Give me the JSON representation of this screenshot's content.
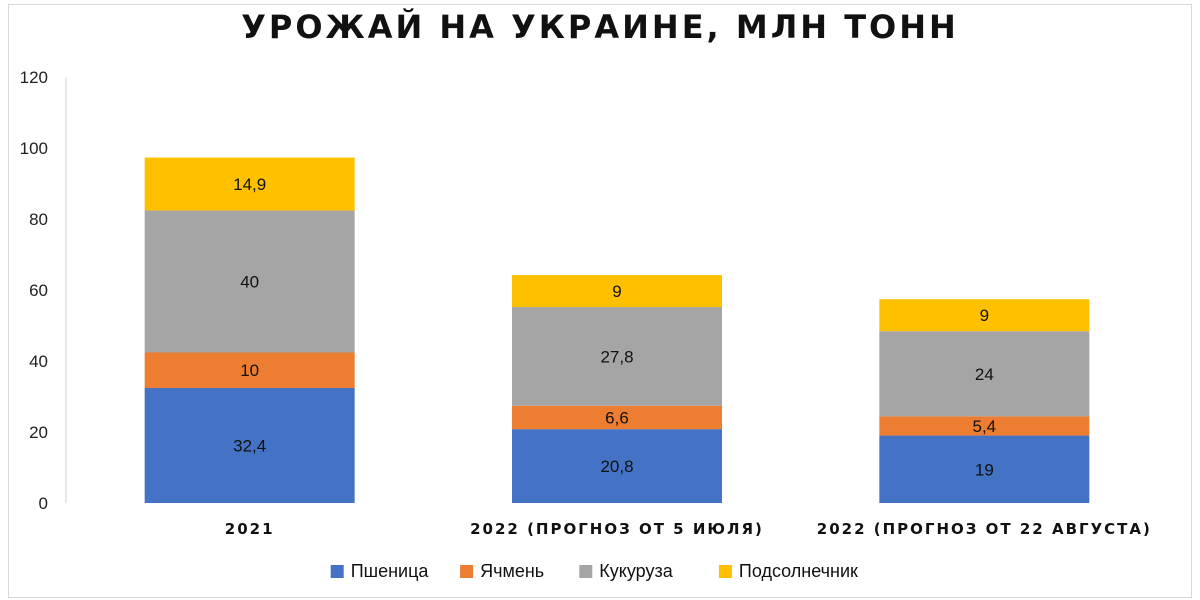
{
  "chart_data": {
    "type": "bar",
    "stacked": true,
    "title": "УРОЖАЙ НА УКРАИНЕ, МЛН ТОНН",
    "xlabel": "",
    "ylabel": "",
    "ylim": [
      0,
      120
    ],
    "yticks": [
      0,
      20,
      40,
      60,
      80,
      100,
      120
    ],
    "grid": false,
    "legend_position": "bottom",
    "categories": [
      "2021",
      "2022 (ПРОГНОЗ ОТ 5 ИЮЛЯ)",
      "2022 (ПРОГНОЗ ОТ 22 АВГУСТА)"
    ],
    "series": [
      {
        "name": "Пшеница",
        "color": "#4472c4",
        "values": [
          32.4,
          20.8,
          19
        ],
        "labels": [
          "32,4",
          "20,8",
          "19"
        ]
      },
      {
        "name": "Ячмень",
        "color": "#ed7d31",
        "values": [
          10,
          6.6,
          5.4
        ],
        "labels": [
          "10",
          "6,6",
          "5,4"
        ]
      },
      {
        "name": "Кукуруза",
        "color": "#a5a5a5",
        "values": [
          40,
          27.8,
          24
        ],
        "labels": [
          "40",
          "27,8",
          "24"
        ]
      },
      {
        "name": "Подсолнечник",
        "color": "#ffc000",
        "values": [
          14.9,
          9,
          9
        ],
        "labels": [
          "14,9",
          "9",
          "9"
        ]
      }
    ]
  }
}
